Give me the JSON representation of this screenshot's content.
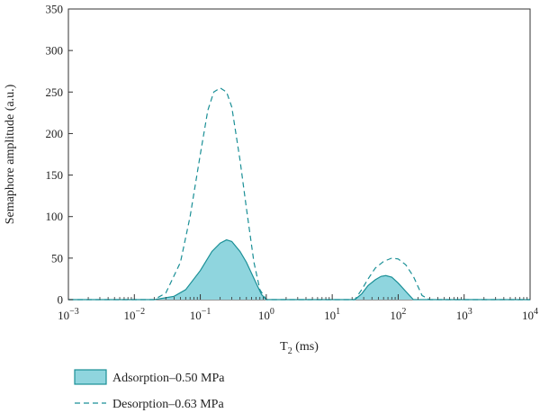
{
  "chart_data": {
    "type": "area",
    "x_scale": "log",
    "xlim": [
      0.001,
      10000
    ],
    "ylim": [
      0,
      350
    ],
    "grid": false,
    "legend_placement": "bottom-left",
    "xlabel": {
      "main": "T",
      "sub": "2",
      "unit": " (ms)"
    },
    "ylabel": "Semaphore amplitude (a.u.)",
    "x_ticks": [
      {
        "base": "10",
        "exp": "−3",
        "value": 0.001
      },
      {
        "base": "10",
        "exp": "−2",
        "value": 0.01
      },
      {
        "base": "10",
        "exp": "−1",
        "value": 0.1
      },
      {
        "base": "10",
        "exp": "0",
        "value": 1
      },
      {
        "base": "10",
        "exp": "1",
        "value": 10
      },
      {
        "base": "10",
        "exp": "2",
        "value": 100
      },
      {
        "base": "10",
        "exp": "3",
        "value": 1000
      },
      {
        "base": "10",
        "exp": "4",
        "value": 10000
      }
    ],
    "y_ticks": [
      "0",
      "50",
      "100",
      "150",
      "200",
      "250",
      "300",
      "350"
    ],
    "series": [
      {
        "name": "Adsorption–0.50 MPa",
        "style": "filled",
        "color": "#1a8f96",
        "fill": "#8fd5de",
        "x": [
          0.001,
          0.01,
          0.02,
          0.04,
          0.06,
          0.1,
          0.15,
          0.2,
          0.25,
          0.3,
          0.4,
          0.5,
          0.7,
          0.85,
          1.0,
          5,
          10,
          22,
          28,
          35,
          45,
          55,
          65,
          80,
          100,
          130,
          170,
          10000
        ],
        "y": [
          0,
          0,
          0,
          4,
          12,
          35,
          58,
          68,
          72,
          70,
          58,
          45,
          20,
          6,
          0,
          0,
          0,
          0,
          7,
          17,
          24,
          28,
          29,
          27,
          20,
          10,
          0,
          0
        ]
      },
      {
        "name": "Desorption–0.63 MPa",
        "style": "dashed",
        "color": "#1a8f96",
        "x": [
          0.001,
          0.01,
          0.02,
          0.03,
          0.05,
          0.07,
          0.1,
          0.13,
          0.16,
          0.2,
          0.25,
          0.3,
          0.4,
          0.5,
          0.65,
          0.8,
          1.0,
          5,
          10,
          22,
          28,
          35,
          45,
          60,
          80,
          100,
          130,
          170,
          230,
          300,
          10000
        ],
        "y": [
          0,
          0,
          0,
          8,
          45,
          100,
          175,
          228,
          250,
          255,
          250,
          232,
          168,
          110,
          45,
          12,
          0,
          0,
          0,
          0,
          12,
          25,
          38,
          46,
          50,
          49,
          42,
          28,
          5,
          0,
          0
        ]
      }
    ]
  }
}
